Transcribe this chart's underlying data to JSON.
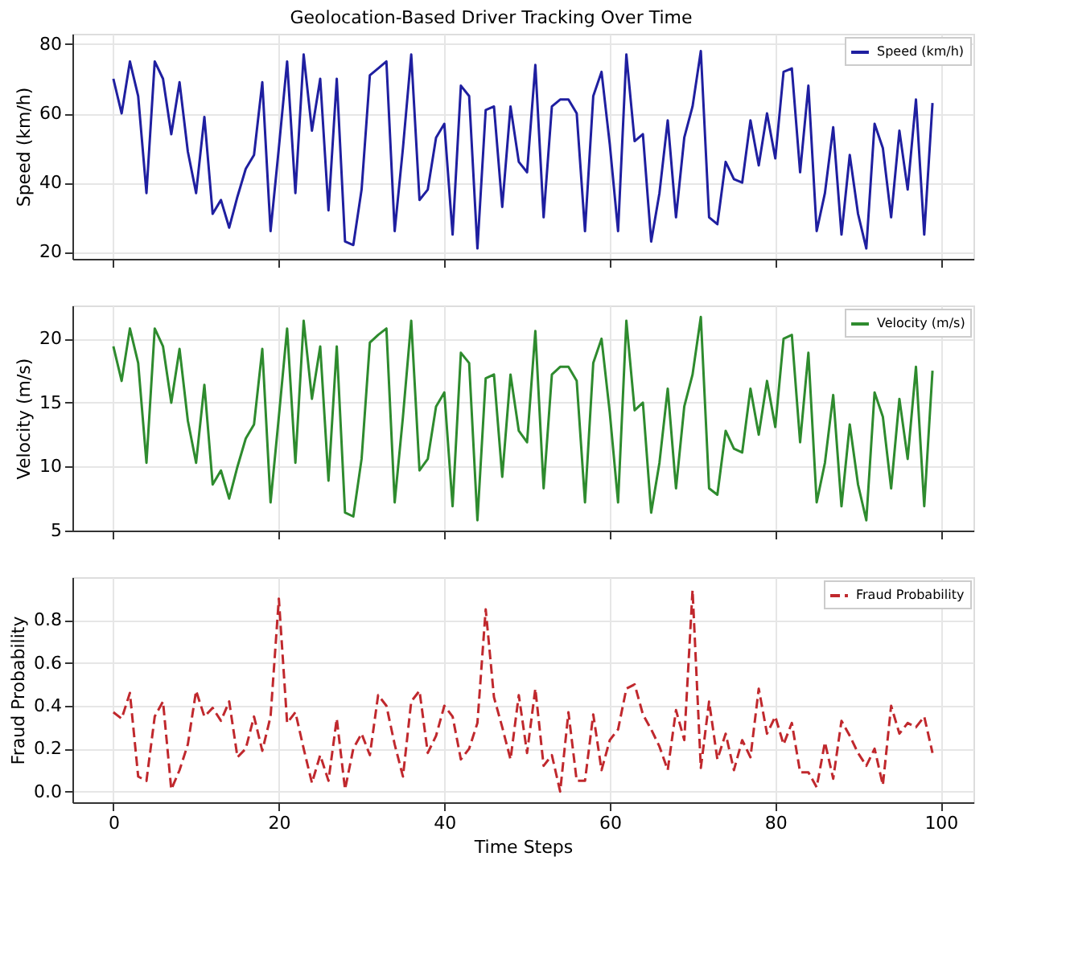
{
  "chart_data": [
    {
      "type": "line",
      "title": "Geolocation-Based Driver Tracking Over Time",
      "ylabel": "Speed (km/h)",
      "legend": "top right",
      "grid": true,
      "tick_labels": "y",
      "line_style": "solid",
      "xlim": [
        -4.95,
        103.95
      ],
      "xticks": [
        0,
        20,
        40,
        60,
        80,
        100
      ],
      "ylim": [
        18,
        83
      ],
      "yticks": [
        20,
        40,
        60,
        80
      ],
      "x": [
        0,
        1,
        2,
        3,
        4,
        5,
        6,
        7,
        8,
        9,
        10,
        11,
        12,
        13,
        14,
        15,
        16,
        17,
        18,
        19,
        20,
        21,
        22,
        23,
        24,
        25,
        26,
        27,
        28,
        29,
        30,
        31,
        32,
        33,
        34,
        35,
        36,
        37,
        38,
        39,
        40,
        41,
        42,
        43,
        44,
        45,
        46,
        47,
        48,
        49,
        50,
        51,
        52,
        53,
        54,
        55,
        56,
        57,
        58,
        59,
        60,
        61,
        62,
        63,
        64,
        65,
        66,
        67,
        68,
        69,
        70,
        71,
        72,
        73,
        74,
        75,
        76,
        77,
        78,
        79,
        80,
        81,
        82,
        83,
        84,
        85,
        86,
        87,
        88,
        89,
        90,
        91,
        92,
        93,
        94,
        95,
        96,
        97,
        98,
        99
      ],
      "series": [
        {
          "name": "Speed (km/h)",
          "color": "#1f1fa0",
          "values": [
            70,
            60,
            75,
            65,
            37,
            75,
            70,
            54,
            69,
            49,
            37,
            59,
            31,
            35,
            27,
            36,
            44,
            48,
            69,
            26,
            50,
            75,
            37,
            77,
            55,
            70,
            32,
            70,
            23,
            22,
            38,
            71,
            73,
            75,
            26,
            50,
            77,
            35,
            38,
            53,
            57,
            25,
            68,
            65,
            21,
            61,
            62,
            33,
            62,
            46,
            43,
            74,
            30,
            62,
            64,
            64,
            60,
            26,
            65,
            72,
            51,
            26,
            77,
            52,
            54,
            23,
            37,
            58,
            30,
            53,
            62,
            78,
            30,
            28,
            46,
            41,
            40,
            58,
            45,
            60,
            47,
            72,
            73,
            43,
            68,
            26,
            37,
            56,
            25,
            48,
            31,
            21,
            57,
            50,
            30,
            55,
            38,
            64,
            25,
            63
          ]
        }
      ]
    },
    {
      "type": "line",
      "ylabel": "Velocity (m/s)",
      "legend": "top right",
      "grid": true,
      "tick_labels": "y",
      "line_style": "solid",
      "xlim": [
        -4.95,
        103.95
      ],
      "xticks": [
        0,
        20,
        40,
        60,
        80,
        100
      ],
      "ylim": [
        5,
        22.6
      ],
      "yticks": [
        5,
        10,
        15,
        20
      ],
      "x": [
        0,
        1,
        2,
        3,
        4,
        5,
        6,
        7,
        8,
        9,
        10,
        11,
        12,
        13,
        14,
        15,
        16,
        17,
        18,
        19,
        20,
        21,
        22,
        23,
        24,
        25,
        26,
        27,
        28,
        29,
        30,
        31,
        32,
        33,
        34,
        35,
        36,
        37,
        38,
        39,
        40,
        41,
        42,
        43,
        44,
        45,
        46,
        47,
        48,
        49,
        50,
        51,
        52,
        53,
        54,
        55,
        56,
        57,
        58,
        59,
        60,
        61,
        62,
        63,
        64,
        65,
        66,
        67,
        68,
        69,
        70,
        71,
        72,
        73,
        74,
        75,
        76,
        77,
        78,
        79,
        80,
        81,
        82,
        83,
        84,
        85,
        86,
        87,
        88,
        89,
        90,
        91,
        92,
        93,
        94,
        95,
        96,
        97,
        98,
        99
      ],
      "series": [
        {
          "name": "Velocity (m/s)",
          "color": "#2e8b2e",
          "values": [
            19.4,
            16.7,
            20.8,
            18.1,
            10.3,
            20.8,
            19.4,
            15.0,
            19.2,
            13.6,
            10.3,
            16.4,
            8.6,
            9.7,
            7.5,
            10.0,
            12.2,
            13.3,
            19.2,
            7.2,
            13.9,
            20.8,
            10.3,
            21.4,
            15.3,
            19.4,
            8.9,
            19.4,
            6.4,
            6.1,
            10.6,
            19.7,
            20.3,
            20.8,
            7.2,
            13.9,
            21.4,
            9.7,
            10.6,
            14.7,
            15.8,
            6.9,
            18.9,
            18.1,
            5.8,
            16.9,
            17.2,
            9.2,
            17.2,
            12.8,
            11.9,
            20.6,
            8.3,
            17.2,
            17.8,
            17.8,
            16.7,
            7.2,
            18.1,
            20.0,
            14.2,
            7.2,
            21.4,
            14.4,
            15.0,
            6.4,
            10.3,
            16.1,
            8.3,
            14.7,
            17.2,
            21.7,
            8.3,
            7.8,
            12.8,
            11.4,
            11.1,
            16.1,
            12.5,
            16.7,
            13.1,
            20.0,
            20.3,
            11.9,
            18.9,
            7.2,
            10.3,
            15.6,
            6.9,
            13.3,
            8.6,
            5.8,
            15.8,
            13.9,
            8.3,
            15.3,
            10.6,
            17.8,
            6.9,
            17.5
          ]
        }
      ]
    },
    {
      "type": "line",
      "ylabel": "Fraud Probability",
      "xlabel": "Time Steps",
      "legend": "top right",
      "grid": true,
      "line_style": "dashed",
      "xlim": [
        -4.95,
        103.95
      ],
      "xticks": [
        0,
        20,
        40,
        60,
        80,
        100
      ],
      "ylim": [
        -0.05,
        1.0
      ],
      "yticks": [
        {
          "value": 0,
          "label": "0.0"
        },
        {
          "value": 0.2,
          "label": "0.2"
        },
        {
          "value": 0.4,
          "label": "0.4"
        },
        {
          "value": 0.6,
          "label": "0.6"
        },
        {
          "value": 0.8,
          "label": "0.8"
        }
      ],
      "x": [
        0,
        1,
        2,
        3,
        4,
        5,
        6,
        7,
        8,
        9,
        10,
        11,
        12,
        13,
        14,
        15,
        16,
        17,
        18,
        19,
        20,
        21,
        22,
        23,
        24,
        25,
        26,
        27,
        28,
        29,
        30,
        31,
        32,
        33,
        34,
        35,
        36,
        37,
        38,
        39,
        40,
        41,
        42,
        43,
        44,
        45,
        46,
        47,
        48,
        49,
        50,
        51,
        52,
        53,
        54,
        55,
        56,
        57,
        58,
        59,
        60,
        61,
        62,
        63,
        64,
        65,
        66,
        67,
        68,
        69,
        70,
        71,
        72,
        73,
        74,
        75,
        76,
        77,
        78,
        79,
        80,
        81,
        82,
        83,
        84,
        85,
        86,
        87,
        88,
        89,
        90,
        91,
        92,
        93,
        94,
        95,
        96,
        97,
        98,
        99
      ],
      "series": [
        {
          "name": "Fraud Probability",
          "color": "#c0282d",
          "values": [
            0.37,
            0.34,
            0.46,
            0.07,
            0.05,
            0.35,
            0.42,
            0.01,
            0.1,
            0.22,
            0.47,
            0.35,
            0.39,
            0.33,
            0.42,
            0.16,
            0.2,
            0.35,
            0.19,
            0.35,
            0.9,
            0.32,
            0.37,
            0.2,
            0.04,
            0.17,
            0.05,
            0.34,
            0.01,
            0.2,
            0.27,
            0.17,
            0.45,
            0.4,
            0.22,
            0.07,
            0.42,
            0.47,
            0.18,
            0.26,
            0.4,
            0.35,
            0.15,
            0.2,
            0.32,
            0.85,
            0.44,
            0.3,
            0.15,
            0.45,
            0.18,
            0.48,
            0.12,
            0.17,
            0.0,
            0.37,
            0.05,
            0.05,
            0.36,
            0.1,
            0.24,
            0.29,
            0.48,
            0.5,
            0.36,
            0.29,
            0.21,
            0.1,
            0.38,
            0.24,
            0.94,
            0.11,
            0.42,
            0.15,
            0.27,
            0.1,
            0.24,
            0.16,
            0.48,
            0.27,
            0.35,
            0.22,
            0.32,
            0.09,
            0.09,
            0.02,
            0.23,
            0.06,
            0.33,
            0.26,
            0.18,
            0.12,
            0.2,
            0.03,
            0.4,
            0.27,
            0.32,
            0.3,
            0.35,
            0.18
          ]
        }
      ]
    }
  ]
}
